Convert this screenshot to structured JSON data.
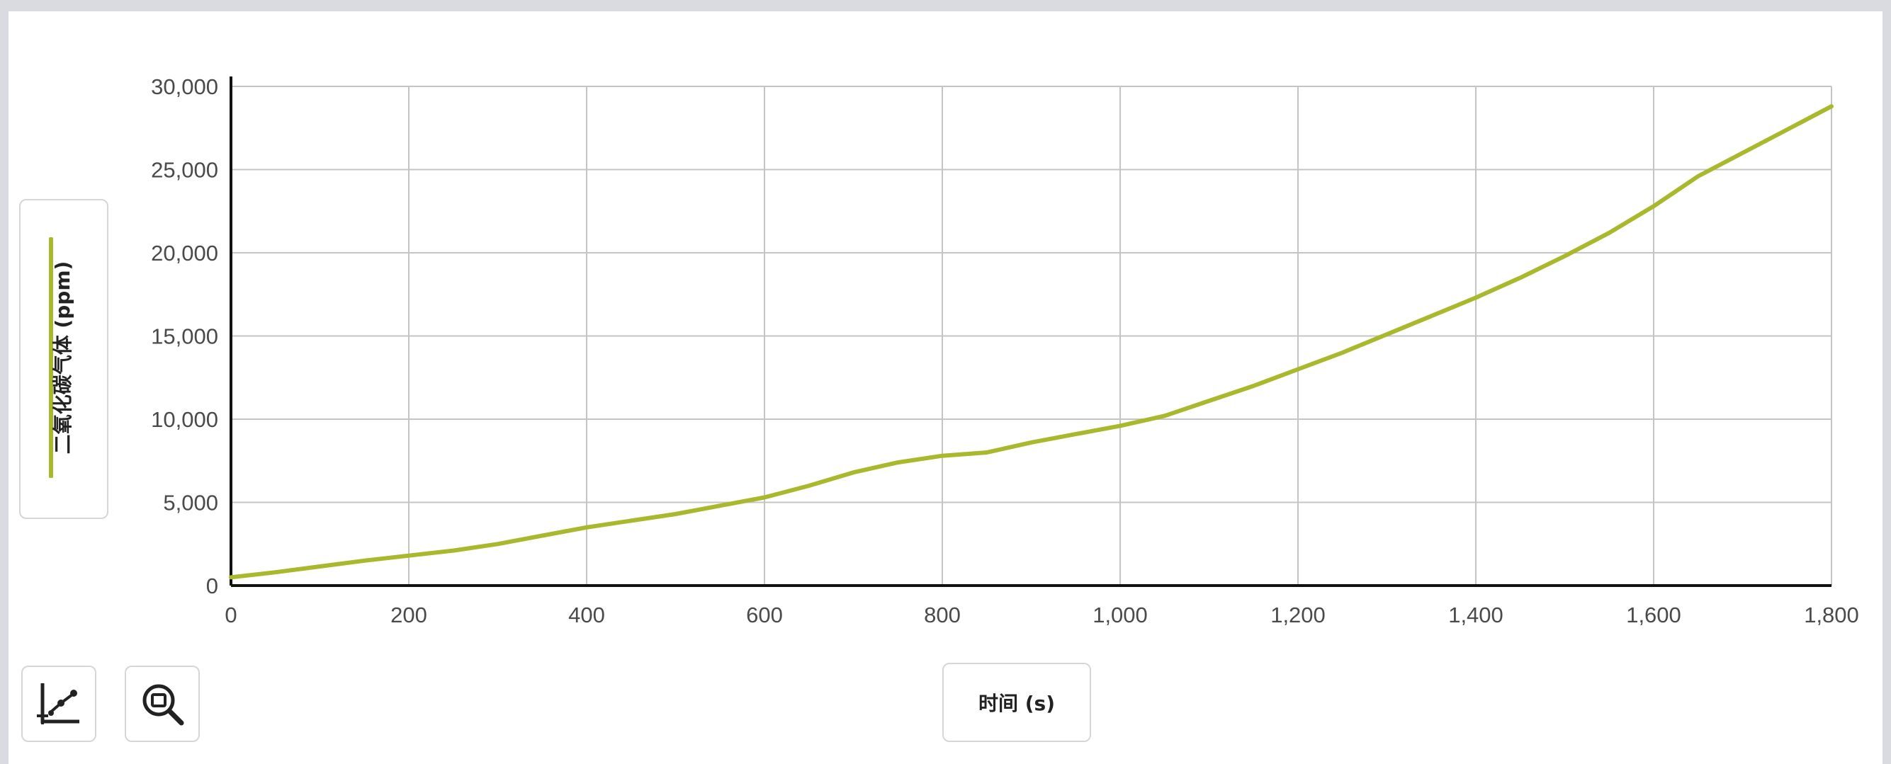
{
  "chart_data": {
    "type": "line",
    "xlabel": "时间 (s)",
    "ylabel": "二氧化碳气体 (ppm)",
    "xlim": [
      0,
      1800
    ],
    "ylim": [
      0,
      30000
    ],
    "x_ticks": [
      "0",
      "200",
      "400",
      "600",
      "800",
      "1,000",
      "1,200",
      "1,400",
      "1,600",
      "1,800"
    ],
    "y_ticks": [
      "0",
      "5,000",
      "10,000",
      "15,000",
      "20,000",
      "25,000",
      "30,000"
    ],
    "grid": true,
    "legend_position": "left",
    "series": [
      {
        "name": "二氧化碳气体 (ppm)",
        "color": "#a9b82c",
        "x": [
          0,
          50,
          100,
          150,
          200,
          250,
          300,
          350,
          400,
          450,
          500,
          550,
          600,
          650,
          700,
          750,
          800,
          850,
          900,
          950,
          1000,
          1050,
          1100,
          1150,
          1200,
          1250,
          1300,
          1350,
          1400,
          1450,
          1500,
          1550,
          1600,
          1650,
          1700,
          1750,
          1800
        ],
        "y": [
          500,
          800,
          1150,
          1500,
          1800,
          2100,
          2500,
          3000,
          3500,
          3900,
          4300,
          4800,
          5300,
          6000,
          6800,
          7400,
          7800,
          8000,
          8600,
          9100,
          9600,
          10200,
          11100,
          12000,
          13000,
          14000,
          15100,
          16200,
          17300,
          18500,
          19800,
          21200,
          22800,
          24600,
          26000,
          27400,
          28800
        ]
      }
    ]
  },
  "toolbar": {
    "icons": [
      "graph-tool-icon",
      "zoom-icon"
    ]
  }
}
